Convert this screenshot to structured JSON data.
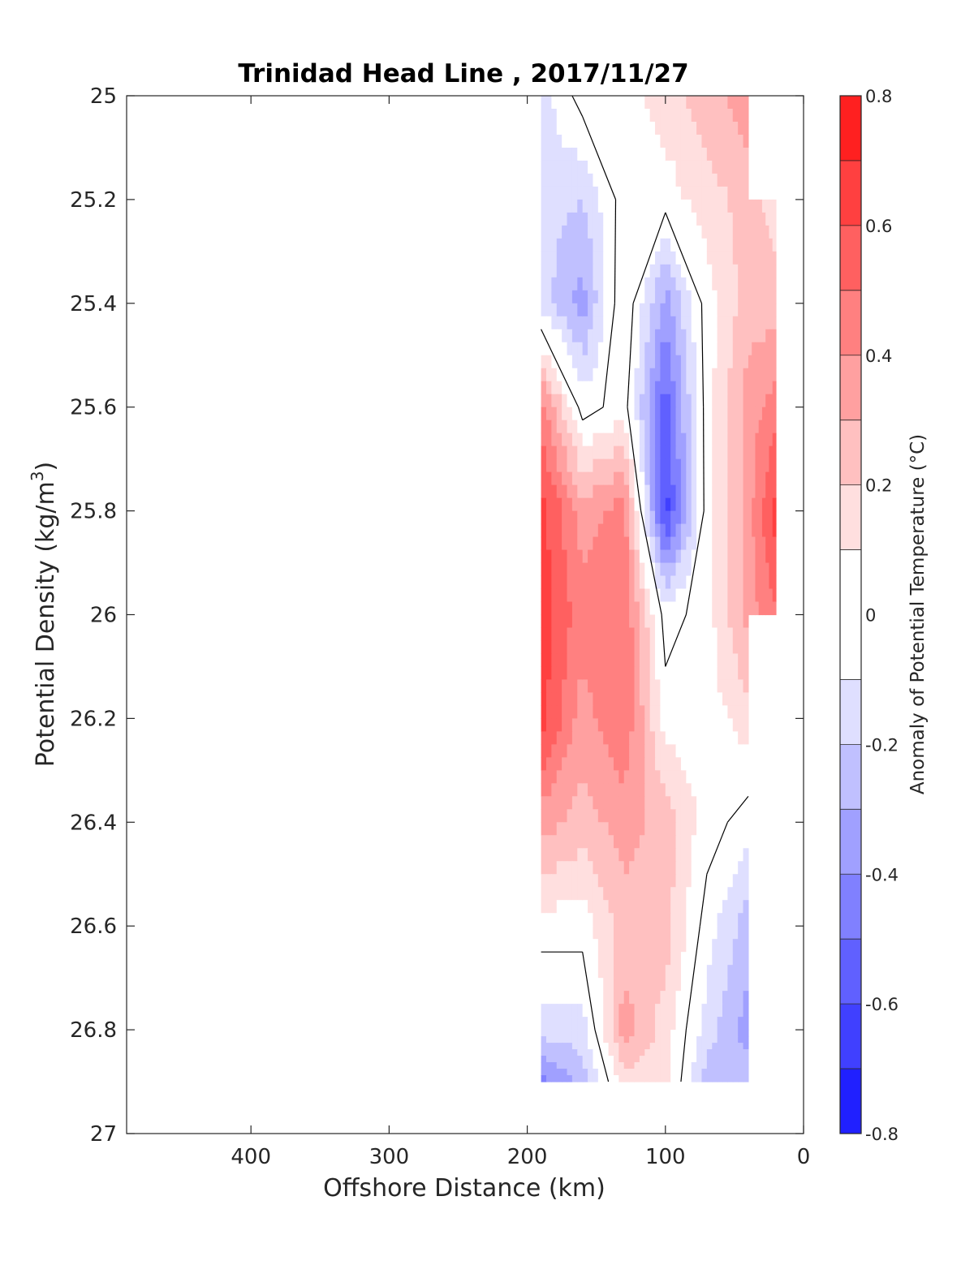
{
  "chart_data": {
    "type": "heatmap",
    "title": "Trinidad Head Line , 2017/11/27",
    "xlabel": "Offshore Distance (km)",
    "ylabel_text": "Potential Density (kg/m",
    "ylabel_sup": "3",
    "ylabel_close": ")",
    "colorbar_label": "Anomaly of Potential Temperature (°C)",
    "x_reversed": true,
    "y_reversed": true,
    "xlim": [
      0,
      490
    ],
    "ylim": [
      25,
      27
    ],
    "xticks": [
      400,
      300,
      200,
      100,
      0
    ],
    "xtick_labels": [
      "400",
      "300",
      "200",
      "100",
      "0"
    ],
    "yticks": [
      25,
      25.2,
      25.4,
      25.6,
      25.8,
      26,
      26.2,
      26.4,
      26.6,
      26.8,
      27
    ],
    "ytick_labels": [
      "25",
      "25.2",
      "25.4",
      "25.6",
      "25.8",
      "26",
      "26.2",
      "26.4",
      "26.6",
      "26.8",
      "27"
    ],
    "clim": [
      -0.8,
      0.8
    ],
    "colorbar_ticks": [
      0.8,
      0.6,
      0.4,
      0.2,
      0,
      -0.2,
      -0.4,
      -0.6,
      -0.8
    ],
    "colorbar_tick_labels": [
      "0.8",
      "0.6",
      "0.4",
      "0.2",
      "0",
      "-0.2",
      "-0.4",
      "-0.6",
      "-0.8"
    ],
    "levels": [
      -0.8,
      -0.7,
      -0.6,
      -0.5,
      -0.4,
      -0.3,
      -0.2,
      -0.1,
      0.1,
      0.2,
      0.3,
      0.4,
      0.5,
      0.6,
      0.7,
      0.8
    ],
    "level_colors": [
      "#0000ff",
      "#2020ff",
      "#4040ff",
      "#6060ff",
      "#8080ff",
      "#a0a0ff",
      "#c0c0ff",
      "#dfdfff",
      "#ffffff",
      "#ffdfdf",
      "#ffc0c0",
      "#ffa0a0",
      "#ff8080",
      "#ff6060",
      "#ff4040",
      "#ff2020",
      "#ff0000"
    ],
    "zero_contour_color": "#000000",
    "grid_x_km": [
      190,
      160,
      130,
      100,
      70,
      40,
      20
    ],
    "grid_y_density": [
      25.0,
      25.2,
      25.4,
      25.6,
      25.8,
      26.0,
      26.2,
      26.4,
      26.6,
      26.8,
      26.9
    ],
    "values": [
      [
        -0.15,
        0.05,
        0.05,
        0.15,
        0.25,
        0.35,
        null
      ],
      [
        -0.15,
        -0.2,
        0.05,
        0.05,
        0.15,
        0.25,
        0.15
      ],
      [
        -0.15,
        -0.35,
        0.1,
        -0.35,
        0.05,
        0.25,
        0.25
      ],
      [
        0.45,
        -0.05,
        0.05,
        -0.55,
        0.05,
        0.35,
        0.45
      ],
      [
        0.65,
        0.35,
        0.45,
        -0.65,
        0.05,
        0.35,
        0.65
      ],
      [
        0.65,
        0.45,
        0.5,
        -0.05,
        0.05,
        0.35,
        0.5
      ],
      [
        0.65,
        0.35,
        0.5,
        0.05,
        0.05,
        0.15,
        null
      ],
      [
        0.35,
        0.25,
        0.35,
        0.25,
        0.05,
        -0.05,
        null
      ],
      [
        0.05,
        0.05,
        0.25,
        0.25,
        -0.05,
        -0.25,
        null
      ],
      [
        -0.15,
        -0.15,
        0.35,
        0.15,
        -0.15,
        -0.35,
        null
      ],
      [
        -0.45,
        -0.25,
        0.15,
        0.15,
        -0.25,
        -0.25,
        null
      ]
    ]
  }
}
